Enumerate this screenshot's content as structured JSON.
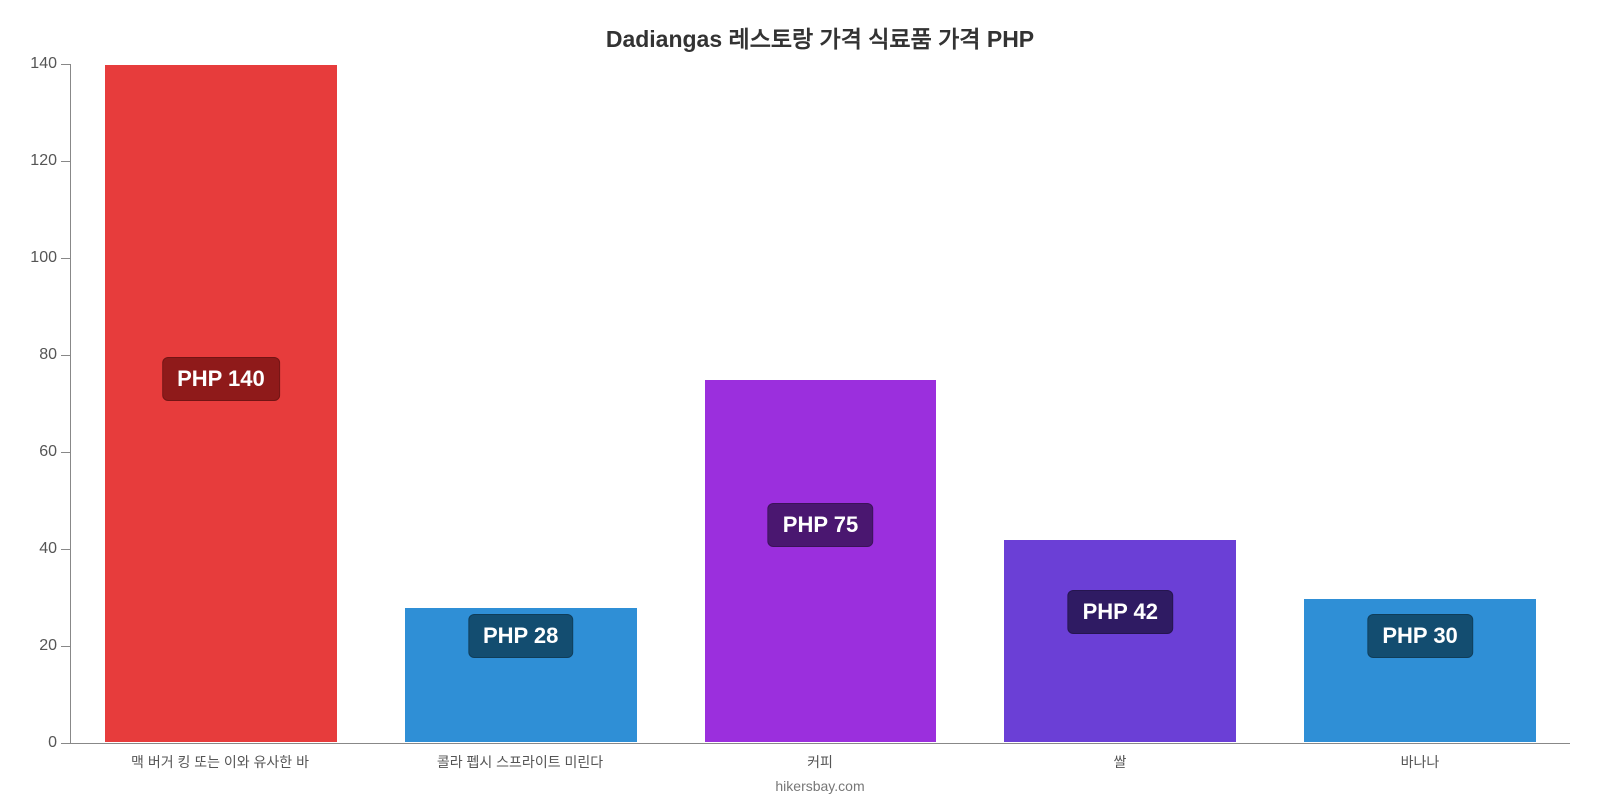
{
  "chart": {
    "type": "bar",
    "title": "Dadiangas 레스토랑 가격 식료품 가격 PHP",
    "title_fontsize": 23,
    "title_color": "#333333",
    "background_color": "#ffffff",
    "axis_color": "#888888",
    "ylim": [
      0,
      140
    ],
    "yticks": [
      0,
      20,
      40,
      60,
      80,
      100,
      120,
      140
    ],
    "ytick_fontsize": 16,
    "ytick_color": "#555555",
    "xlabel_fontsize": 14,
    "xlabel_color": "#555555",
    "bar_width_pct": 78,
    "bar_border_color": "#ffffff",
    "categories": [
      "맥 버거 킹 또는 이와 유사한 바",
      "콜라 펩시 스프라이트 미린다",
      "커피",
      "쌀",
      "바나나"
    ],
    "values": [
      140,
      28,
      75,
      42,
      30
    ],
    "value_labels": [
      "PHP 140",
      "PHP 28",
      "PHP 75",
      "PHP 42",
      "PHP 30"
    ],
    "bar_colors": [
      "#e73c3c",
      "#2f8fd6",
      "#9b2fdd",
      "#6b3fd6",
      "#2f8fd6"
    ],
    "badge_colors": [
      "#8f1a1a",
      "#134d70",
      "#4a1770",
      "#2f1b63",
      "#134d70"
    ],
    "badge_text_color": "#ffffff",
    "badge_fontsize": 22,
    "badge_radius": 6,
    "badge_y_from_axis_value": [
      75,
      22,
      45,
      27,
      22
    ],
    "footer": "hikersbay.com",
    "footer_color": "#777777",
    "footer_fontsize": 14
  }
}
